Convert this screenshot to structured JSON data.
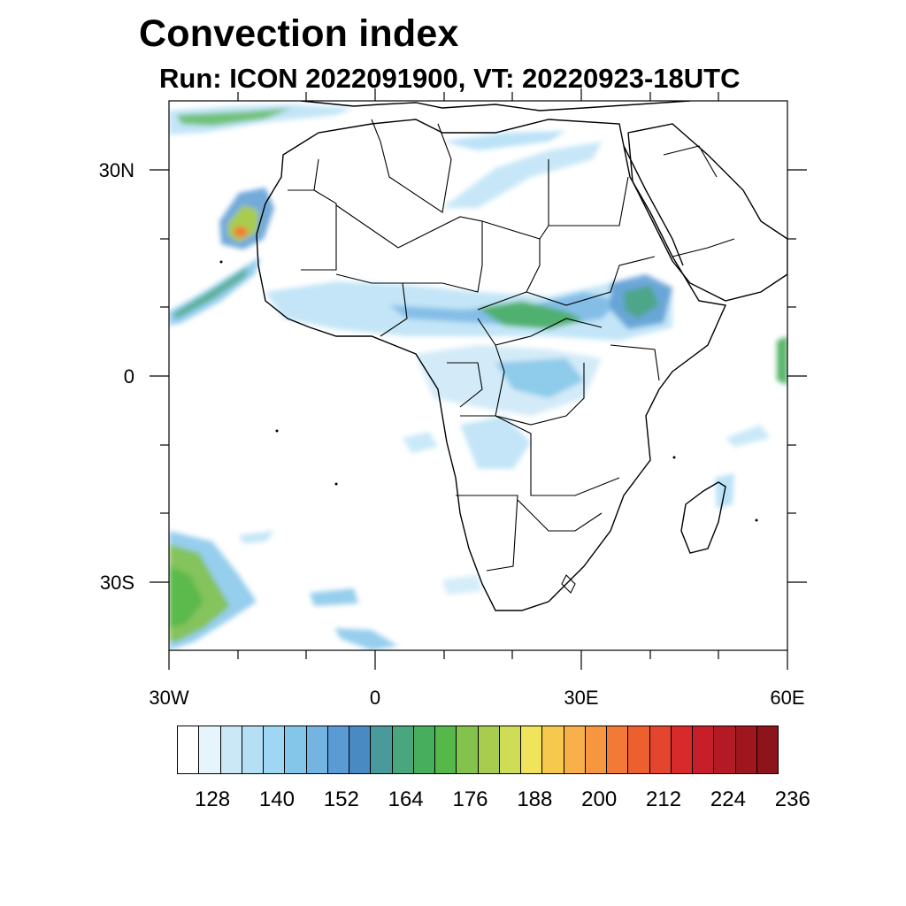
{
  "header": {
    "title": "Convection index",
    "subtitle": "Run: ICON 2022091900,  VT: 20220923-18UTC"
  },
  "map": {
    "lon_range": [
      -30,
      60
    ],
    "lat_range": [
      -40,
      40
    ],
    "lat_ticks": [
      {
        "label": "30N",
        "lat": 30
      },
      {
        "label": "0",
        "lat": 0
      },
      {
        "label": "30S",
        "lat": -30
      }
    ],
    "lon_ticks": [
      {
        "label": "30W",
        "lon": -30
      },
      {
        "label": "0",
        "lon": 0
      },
      {
        "label": "30E",
        "lon": 30
      },
      {
        "label": "60E",
        "lon": 60
      }
    ]
  },
  "colorbar": {
    "colors": [
      "#ffffff",
      "#e6f4fc",
      "#cbe8f7",
      "#b4dff5",
      "#9ed6f3",
      "#84c5ea",
      "#74b4e3",
      "#5a9bd4",
      "#4a8ac2",
      "#4a9a9c",
      "#4aa67c",
      "#46ae5c",
      "#56b84a",
      "#84c24e",
      "#a8cc4e",
      "#cfdc56",
      "#efe45c",
      "#f7c84e",
      "#f8b04a",
      "#f6963e",
      "#f27a36",
      "#ec6030",
      "#e4452e",
      "#d82a2a",
      "#c81e2a",
      "#b41a26",
      "#a0161e",
      "#8c141a"
    ],
    "labels": [
      {
        "text": "128",
        "index": 2
      },
      {
        "text": "140",
        "index": 5
      },
      {
        "text": "152",
        "index": 8
      },
      {
        "text": "164",
        "index": 11
      },
      {
        "text": "176",
        "index": 14
      },
      {
        "text": "188",
        "index": 17
      },
      {
        "text": "200",
        "index": 20
      },
      {
        "text": "212",
        "index": 23
      },
      {
        "text": "224",
        "index": 26
      },
      {
        "text": "236",
        "index": 29
      }
    ]
  }
}
